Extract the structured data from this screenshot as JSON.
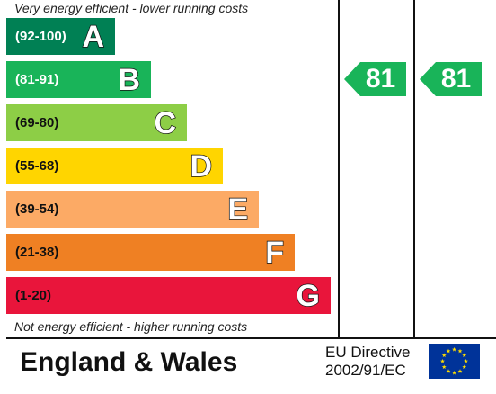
{
  "chart_data": {
    "type": "bar",
    "top_caption": "Very energy efficient - lower running costs",
    "bottom_caption": "Not energy efficient - higher running costs",
    "bands": [
      {
        "range": "(92-100)",
        "letter": "A",
        "color": "#008054",
        "text_color": "#ffffff"
      },
      {
        "range": "(81-91)",
        "letter": "B",
        "color": "#19b459",
        "text_color": "#ffffff"
      },
      {
        "range": "(69-80)",
        "letter": "C",
        "color": "#8dce46",
        "text_color": "#111111"
      },
      {
        "range": "(55-68)",
        "letter": "D",
        "color": "#ffd500",
        "text_color": "#111111"
      },
      {
        "range": "(39-54)",
        "letter": "E",
        "color": "#fcaa65",
        "text_color": "#111111"
      },
      {
        "range": "(21-38)",
        "letter": "F",
        "color": "#ef8023",
        "text_color": "#111111"
      },
      {
        "range": "(1-20)",
        "letter": "G",
        "color": "#e9153b",
        "text_color": "#111111"
      }
    ],
    "ratings": [
      {
        "value": 81,
        "band": "B",
        "color": "#19b459"
      },
      {
        "value": 81,
        "band": "B",
        "color": "#19b459"
      }
    ]
  },
  "footer": {
    "title": "England & Wales",
    "directive_line1": "EU Directive",
    "directive_line2": "2002/91/EC",
    "flag_icon": "eu-flag-icon",
    "flag_color": "#003399",
    "star_color": "#ffdd00"
  }
}
